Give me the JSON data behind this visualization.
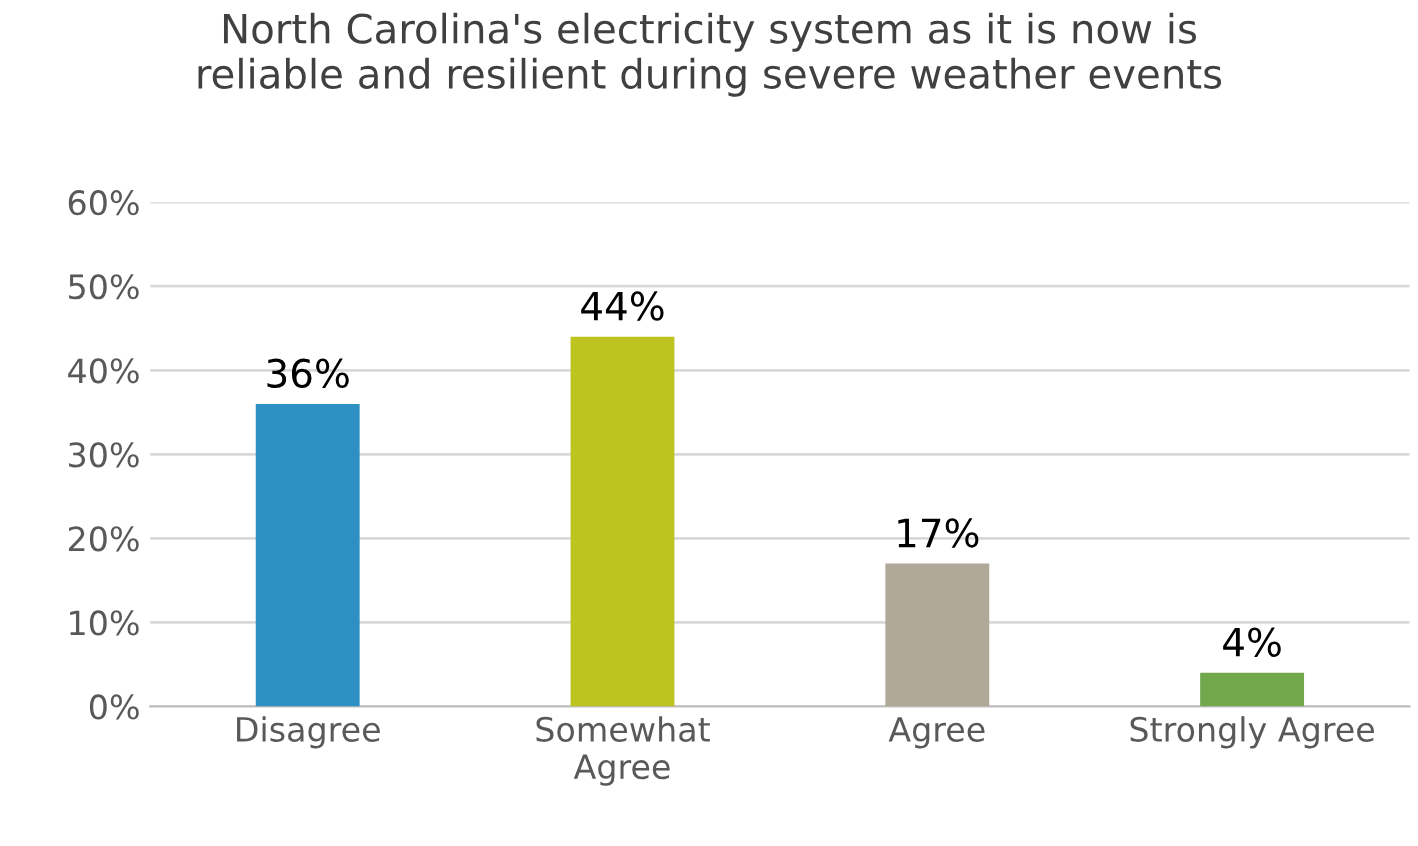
{
  "chart_data": {
    "type": "bar",
    "title": "North Carolina's electricity system as it is now is\nreliable and resilient during severe weather events",
    "categories": [
      "Disagree",
      "Somewhat\nAgree",
      "Agree",
      "Strongly Agree"
    ],
    "values": [
      36,
      44,
      17,
      4
    ],
    "colors": [
      "#2e8fc2",
      "#bdc41f",
      "#b0a898",
      "#70a84b"
    ],
    "value_labels": [
      "36%",
      "44%",
      "17%",
      "4%"
    ],
    "ylim": [
      0,
      60
    ],
    "yticks": [
      {
        "value": 0,
        "label": "0%"
      },
      {
        "value": 10,
        "label": "10%"
      },
      {
        "value": 20,
        "label": "20%"
      },
      {
        "value": 30,
        "label": "30%"
      },
      {
        "value": 40,
        "label": "40%"
      },
      {
        "value": 50,
        "label": "50%"
      },
      {
        "value": 60,
        "label": "60%"
      }
    ],
    "grid": "y",
    "legend": false
  }
}
